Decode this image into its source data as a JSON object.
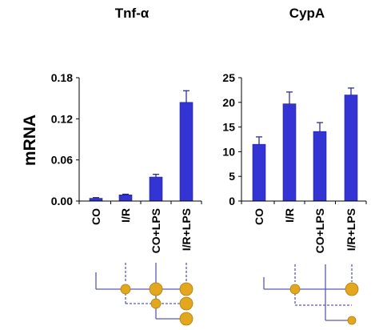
{
  "figure": {
    "ylabel": "mRNA"
  },
  "chart_data": [
    {
      "type": "bar",
      "title": "Tnf-α",
      "ylabel": "mRNA",
      "categories": [
        "CO",
        "I/R",
        "CO+LPS",
        "I/R+LPS"
      ],
      "series": [
        {
          "values": [
            0.004,
            0.009,
            0.035,
            0.144
          ],
          "errors": [
            0.001,
            0.001,
            0.004,
            0.017
          ]
        }
      ],
      "ylim": [
        0,
        0.18
      ],
      "yticks": [
        "0.00",
        "0.06",
        "0.12",
        "0.18"
      ],
      "ytick_values": [
        0,
        0.06,
        0.12,
        0.18
      ],
      "bar_color": "#3434d4",
      "grid": false
    },
    {
      "type": "bar",
      "title": "CypA",
      "categories": [
        "CO",
        "I/R",
        "CO+LPS",
        "I/R+LPS"
      ],
      "series": [
        {
          "values": [
            11.5,
            19.7,
            14.1,
            21.5
          ],
          "errors": [
            1.5,
            2.4,
            1.8,
            1.4
          ]
        }
      ],
      "ylim": [
        0,
        25
      ],
      "yticks": [
        "0",
        "5",
        "10",
        "15",
        "20",
        "25"
      ],
      "ytick_values": [
        0,
        5,
        10,
        15,
        20,
        25
      ],
      "bar_color": "#3434d4",
      "grid": false
    }
  ],
  "diagram": {
    "line_color": "#5b5bb0",
    "node_color": "#e3a71e"
  }
}
